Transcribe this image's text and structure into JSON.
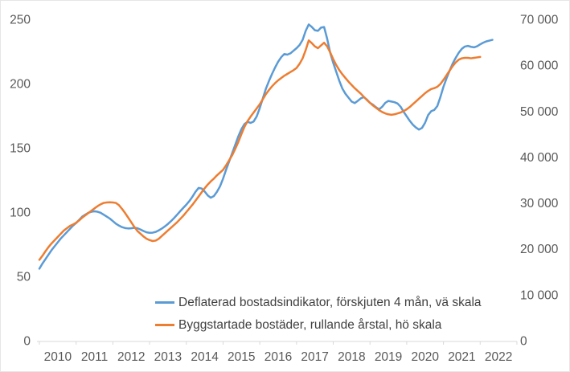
{
  "chart_data": {
    "type": "line",
    "title": "",
    "x_start": "2010-01",
    "x_frequency": "monthly",
    "x_tick_labels": [
      "2010",
      "2011",
      "2012",
      "2013",
      "2014",
      "2015",
      "2016",
      "2017",
      "2018",
      "2019",
      "2020",
      "2021",
      "2022"
    ],
    "grid": false,
    "legend_position": "bottom-inside-left",
    "left_axis": {
      "label": "",
      "range": [
        0,
        250
      ],
      "tick_values": [
        0,
        50,
        100,
        150,
        200,
        250
      ],
      "tick_labels": [
        "0",
        "50",
        "100",
        "150",
        "200",
        "250"
      ]
    },
    "right_axis": {
      "label": "",
      "range": [
        0,
        70000
      ],
      "tick_values": [
        0,
        10000,
        20000,
        30000,
        40000,
        50000,
        60000,
        70000
      ],
      "tick_labels": [
        "0",
        "10 000",
        "20 000",
        "30 000",
        "40 000",
        "50 000",
        "60 000",
        "70 000"
      ]
    },
    "series": [
      {
        "name": "Deflaterad bostadsindikator, förskjuten 4 mån, vä skala",
        "axis": "left",
        "color": "#5B9BD5",
        "values": [
          56,
          60,
          63.5,
          67,
          70.5,
          73.5,
          76.5,
          79.5,
          82,
          84.5,
          87,
          89.5,
          91.5,
          94,
          96.5,
          98,
          99.5,
          100.3,
          100.6,
          100.3,
          99.5,
          98,
          96.5,
          95,
          93,
          91,
          89.5,
          88.3,
          87.6,
          87.3,
          87.4,
          87.8,
          87.5,
          86.5,
          85.3,
          84.3,
          83.9,
          84,
          84.6,
          85.8,
          87.2,
          88.9,
          90.8,
          93,
          95.4,
          98,
          100.7,
          103.3,
          105.8,
          108.6,
          112,
          115.8,
          118.8,
          118.4,
          116,
          113,
          111.2,
          112.5,
          115.8,
          120,
          126,
          133,
          139.5,
          146,
          152.5,
          159,
          164.5,
          168.5,
          170.2,
          169.4,
          170.5,
          174.5,
          181,
          188.5,
          196,
          202,
          207.5,
          212.5,
          217,
          220.5,
          223,
          222.5,
          223.5,
          225.5,
          227.5,
          230,
          234,
          241,
          246,
          244,
          241.5,
          241,
          243.5,
          244,
          235,
          224,
          216,
          209,
          202,
          196,
          192,
          189,
          186,
          184.8,
          186.5,
          188.5,
          189.5,
          187.5,
          185,
          183.5,
          181.5,
          180,
          182,
          185,
          186.5,
          186,
          185.5,
          184.5,
          182,
          178,
          174.5,
          171,
          168,
          165.8,
          164.2,
          165.5,
          169.5,
          175.5,
          178.5,
          179.5,
          182.5,
          189.5,
          197.5,
          204,
          210,
          215.5,
          220,
          224,
          227,
          228.8,
          229.3,
          228.6,
          228.2,
          229,
          230.5,
          231.8,
          232.8,
          233.4,
          234
        ]
      },
      {
        "name": "Byggstartade bostäder, rullande årstal, hö skala",
        "axis": "right",
        "color": "#ED7D31",
        "values": [
          17600,
          18500,
          19500,
          20400,
          21200,
          21900,
          22600,
          23300,
          24000,
          24500,
          25000,
          25300,
          25700,
          26200,
          26800,
          27300,
          27800,
          28300,
          28800,
          29300,
          29700,
          30000,
          30100,
          30150,
          30100,
          30000,
          29500,
          28700,
          27800,
          26800,
          25800,
          24800,
          23900,
          23300,
          22700,
          22200,
          21900,
          21700,
          21800,
          22200,
          22800,
          23400,
          24000,
          24600,
          25200,
          25800,
          26500,
          27200,
          28000,
          28800,
          29600,
          30500,
          31400,
          32300,
          33200,
          34000,
          34700,
          35300,
          36000,
          36600,
          37200,
          38200,
          39300,
          40400,
          41800,
          43300,
          45000,
          46600,
          47800,
          48800,
          49700,
          50600,
          51500,
          52600,
          53700,
          54600,
          55400,
          56100,
          56700,
          57200,
          57700,
          58100,
          58500,
          58900,
          59400,
          60300,
          61500,
          63300,
          65400,
          64800,
          64100,
          63700,
          64300,
          64900,
          64100,
          62800,
          61300,
          60000,
          58900,
          58000,
          57200,
          56400,
          55700,
          55000,
          54400,
          53800,
          53100,
          52400,
          51800,
          51200,
          50700,
          50200,
          49800,
          49500,
          49300,
          49200,
          49300,
          49500,
          49700,
          50000,
          50400,
          50900,
          51500,
          52100,
          52700,
          53300,
          53900,
          54400,
          54800,
          55000,
          55300,
          55900,
          56800,
          57800,
          58800,
          59800,
          60600,
          61200,
          61500,
          61600,
          61600,
          61500,
          61600,
          61700,
          61800
        ]
      }
    ],
    "style": {
      "axis_line_color": "#D9D9D9",
      "tick_label_color": "#595959",
      "legend_text_color": "#404040",
      "background": "#FFFFFF"
    }
  }
}
